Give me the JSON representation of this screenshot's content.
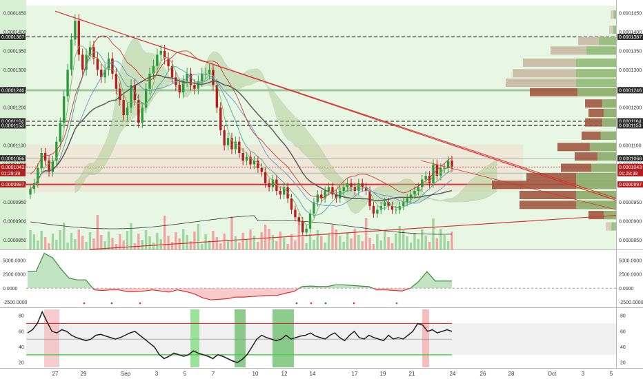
{
  "chart_data": [
    {
      "type": "candlestick",
      "panel": "price",
      "ylim": [
        8.25e-05,
        0.000147
      ],
      "yticks": [
        "0.0001450",
        "0.0001400",
        "0.0001350",
        "0.0001300",
        "0.0001250",
        "0.0001200",
        "0.0001150",
        "0.0001100",
        "0.0001050",
        "0.0001000",
        "0.0000950",
        "0.0000900",
        "0.0000850"
      ],
      "price_levels": [
        {
          "label": "0.0001387",
          "value": 0.0001387,
          "style": "dashed"
        },
        {
          "label": "0.0001246",
          "value": 0.0001246,
          "style": "solid-green"
        },
        {
          "label": "0.0001164",
          "value": 0.0001164,
          "style": "dashed"
        },
        {
          "label": "0.0001153",
          "value": 0.0001153,
          "style": "dashed"
        },
        {
          "label": "0.0001066",
          "value": 0.0001066,
          "style": "solid"
        },
        {
          "label": "0.0001043",
          "value": 0.0001043,
          "style": "current-price"
        },
        {
          "label": "0.0001027",
          "value": 0.0001027,
          "style": "solid"
        },
        {
          "label": "0.0000997",
          "value": 9.97e-05,
          "style": "solid-red"
        }
      ],
      "countdown_label": "01:29:39",
      "x_axis_labels": [
        "27",
        "29",
        "Sep",
        "3",
        "5",
        "7",
        "10",
        "12",
        "14",
        "17",
        "19",
        "21",
        "24",
        "26",
        "28",
        "Oct",
        "3",
        "5"
      ],
      "close_series": [
        9.85e-05,
        0.0001,
        0.000104,
        0.000108,
        0.000106,
        0.000103,
        0.000106,
        0.000111,
        0.000116,
        0.000123,
        0.00013,
        0.000138,
        0.000143,
        0.000134,
        0.00013,
        0.000134,
        0.000136,
        0.000133,
        0.00013,
        0.000128,
        0.00013,
        0.000133,
        0.000129,
        0.000125,
        0.000122,
        0.000118,
        0.00012,
        0.000126,
        0.000122,
        0.000116,
        0.00012,
        0.000125,
        0.000129,
        0.000131,
        0.000134,
        0.000135,
        0.000133,
        0.000131,
        0.000128,
        0.000126,
        0.000124,
        0.000127,
        0.000129,
        0.000126,
        0.000125,
        0.000127,
        0.000129,
        0.000129,
        0.00013,
        0.000126,
        0.00012,
        0.000114,
        0.00011,
        0.000112,
        0.000109,
        0.000111,
        0.000108,
        0.000106,
        0.000107,
        0.000105,
        0.000106,
        0.000104,
        0.000103,
        0.0001,
        9.9e-05,
        0.000101,
        9.8e-05,
        9.7e-05,
        9.9e-05,
        9.6e-05,
        9.3e-05,
        9.1e-05,
        9e-05,
        8.7e-05,
        8.8e-05,
        9.2e-05,
        9.5e-05,
        9.7e-05,
        9.6e-05,
        9.8e-05,
        9.9e-05,
        9.7e-05,
        9.6e-05,
        9.8e-05,
        9.9e-05,
        0.0001,
        9.9e-05,
        9.8e-05,
        0.0001,
        9.9e-05,
        9.8e-05,
        9.4e-05,
        9.2e-05,
        9.3e-05,
        9.4e-05,
        9.5e-05,
        9.4e-05,
        9.3e-05,
        9.3e-05,
        9.4e-05,
        9.5e-05,
        9.6e-05,
        9.7e-05,
        9.8e-05,
        9.9e-05,
        0.000101,
        0.000102,
        0.0001,
        0.000105,
        0.000102,
        0.000104,
        0.000104,
        0.000106,
        0.0001043
      ],
      "annotations": [
        "fibonacci fan / trend lines",
        "ichimoku cloud",
        "moving averages",
        "volume profile",
        "volume bars"
      ]
    },
    {
      "type": "area",
      "panel": "oscillator",
      "ylim": [
        -3200,
        6500
      ],
      "yticks": [
        "5000.0000",
        "2500.0000",
        "0.0000",
        "-2500.0000"
      ],
      "values": [
        3000,
        3000,
        6300,
        5500,
        3500,
        1800,
        1500,
        1500,
        -300,
        -400,
        -300,
        -300,
        -600,
        -600,
        -500,
        -300,
        -500,
        -700,
        -300,
        -600,
        -1000,
        -1700,
        -2100,
        -2000,
        -1900,
        -1600,
        -1600,
        -1500,
        -1400,
        -1300,
        -1300,
        -900,
        -600,
        300,
        400,
        300,
        300,
        600,
        600,
        500,
        400,
        300,
        -300,
        -300,
        -400,
        -500,
        0,
        1200,
        3000,
        1300,
        1300,
        1300
      ]
    },
    {
      "type": "line",
      "panel": "rsi",
      "ylim": [
        14,
        88
      ],
      "yticks": [
        "80",
        "60",
        "40",
        "20"
      ],
      "reference_lines": [
        70,
        50,
        30
      ],
      "values": [
        58,
        62,
        70,
        85,
        72,
        60,
        58,
        62,
        60,
        55,
        52,
        50,
        48,
        50,
        55,
        56,
        54,
        52,
        50,
        52,
        55,
        58,
        60,
        55,
        50,
        45,
        40,
        30,
        25,
        28,
        32,
        30,
        28,
        30,
        35,
        32,
        30,
        28,
        25,
        30,
        28,
        25,
        22,
        20,
        24,
        30,
        40,
        50,
        55,
        52,
        50,
        48,
        50,
        55,
        50,
        52,
        54,
        55,
        58,
        54,
        52,
        50,
        55,
        58,
        52,
        48,
        55,
        60,
        52,
        50,
        55,
        52,
        50,
        48,
        55,
        50,
        52,
        50,
        55,
        60,
        70,
        68,
        60,
        62,
        58,
        60,
        62,
        60
      ]
    }
  ]
}
